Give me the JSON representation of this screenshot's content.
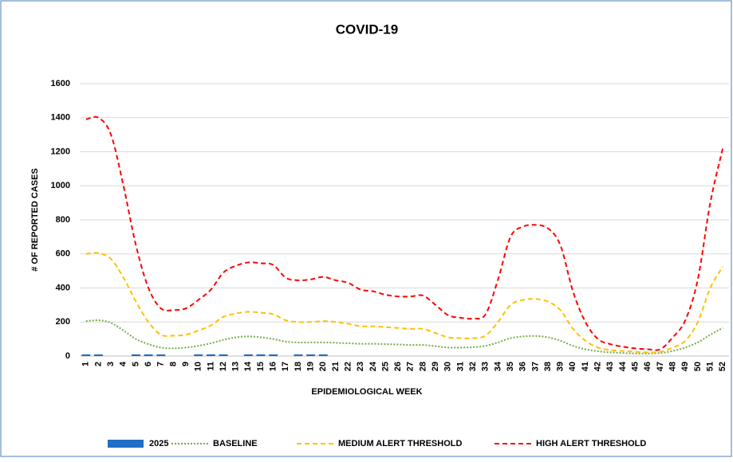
{
  "chart_data": {
    "type": "line",
    "title": "COVID-19",
    "x_label": "EPIDEMIOLOGICAL WEEK",
    "y_label": "# OF REPORTED CASES",
    "categories": [
      1,
      2,
      3,
      4,
      5,
      6,
      7,
      8,
      9,
      10,
      11,
      12,
      13,
      14,
      15,
      16,
      17,
      18,
      19,
      20,
      21,
      22,
      23,
      24,
      25,
      26,
      27,
      28,
      29,
      30,
      31,
      32,
      33,
      34,
      35,
      36,
      37,
      38,
      39,
      40,
      41,
      42,
      43,
      44,
      45,
      46,
      47,
      48,
      49,
      50,
      51,
      52
    ],
    "ylim": [
      0,
      1600
    ],
    "yticks": [
      0,
      200,
      400,
      600,
      800,
      1000,
      1200,
      1400,
      1600
    ],
    "grid": true,
    "legend": "bottom",
    "series": [
      {
        "name": "2025",
        "type": "bar",
        "color": "#1f6fc5",
        "values": [
          10,
          10,
          0,
          0,
          10,
          10,
          10,
          0,
          0,
          10,
          10,
          10,
          0,
          10,
          10,
          10,
          0,
          10,
          10,
          10,
          null,
          null,
          null,
          null,
          null,
          null,
          null,
          null,
          null,
          null,
          null,
          null,
          null,
          null,
          null,
          null,
          null,
          null,
          null,
          null,
          null,
          null,
          null,
          null,
          null,
          null,
          null,
          null,
          null,
          null,
          null,
          null
        ]
      },
      {
        "name": "BASELINE",
        "type": "line",
        "style": "dotted",
        "color": "#70ad47",
        "values": [
          205,
          210,
          195,
          150,
          100,
          70,
          50,
          45,
          50,
          60,
          75,
          95,
          110,
          115,
          110,
          100,
          85,
          80,
          80,
          80,
          78,
          75,
          72,
          72,
          70,
          68,
          65,
          65,
          58,
          50,
          50,
          52,
          60,
          80,
          105,
          115,
          118,
          110,
          90,
          60,
          40,
          28,
          22,
          18,
          15,
          15,
          18,
          30,
          50,
          80,
          125,
          165
        ]
      },
      {
        "name": "MEDIUM ALERT THRESHOLD",
        "type": "line",
        "style": "dashed",
        "color": "#ffc000",
        "values": [
          600,
          605,
          570,
          460,
          320,
          200,
          125,
          120,
          125,
          150,
          180,
          230,
          250,
          260,
          255,
          245,
          210,
          200,
          200,
          205,
          200,
          190,
          175,
          175,
          170,
          165,
          160,
          160,
          135,
          110,
          105,
          105,
          120,
          200,
          300,
          330,
          335,
          320,
          270,
          160,
          90,
          50,
          35,
          30,
          25,
          22,
          25,
          50,
          90,
          200,
          400,
          525
        ]
      },
      {
        "name": "HIGH ALERT THRESHOLD",
        "type": "line",
        "style": "dashed",
        "color": "#ff0000",
        "values": [
          1390,
          1400,
          1300,
          1000,
          650,
          400,
          280,
          270,
          280,
          330,
          390,
          490,
          530,
          550,
          545,
          535,
          460,
          445,
          450,
          465,
          445,
          430,
          390,
          380,
          360,
          350,
          350,
          355,
          300,
          240,
          225,
          220,
          245,
          450,
          700,
          760,
          770,
          750,
          650,
          380,
          200,
          100,
          70,
          55,
          45,
          40,
          40,
          110,
          210,
          450,
          900,
          1220
        ]
      }
    ]
  }
}
